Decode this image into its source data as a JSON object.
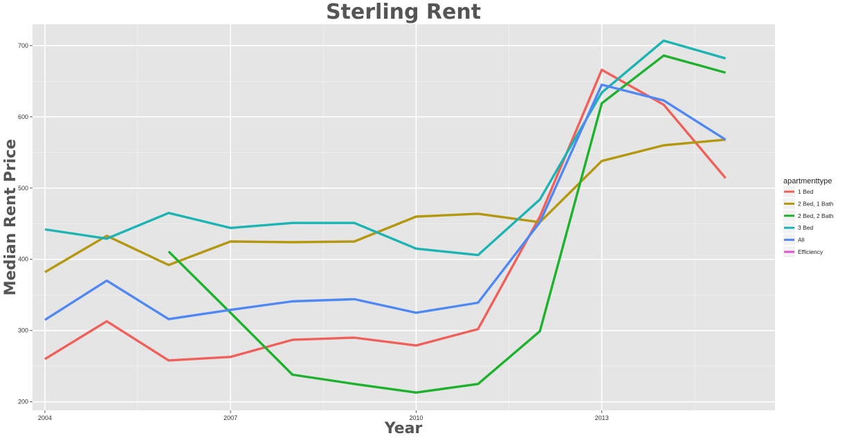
{
  "chart_data": {
    "type": "line",
    "title": "Sterling Rent",
    "xlabel": "Year",
    "ylabel": "Median Rent Price",
    "xlim": [
      2003.8,
      2015.8
    ],
    "ylim": [
      188,
      730
    ],
    "x_ticks": [
      2004,
      2007,
      2010,
      2013
    ],
    "x_tick_labels": [
      "2004",
      "2007",
      "2010",
      "2013"
    ],
    "y_ticks": [
      200,
      300,
      400,
      500,
      600,
      700
    ],
    "y_tick_labels": [
      "200",
      "300",
      "400",
      "500",
      "600",
      "700"
    ],
    "grid": true,
    "legend": {
      "title": "apartmenttype",
      "placement": "right",
      "entries": [
        "1 Bed",
        "2 Bed, 1 Bath",
        "2 Bed, 2 Bath",
        "3 Bed",
        "All",
        "Efficiency"
      ]
    },
    "colors": {
      "1 Bed": "#F0605A",
      "2 Bed, 1 Bath": "#B3980F",
      "2 Bed, 2 Bath": "#1DB12D",
      "3 Bed": "#1CB3B3",
      "All": "#5088F3",
      "Efficiency": "#E552CF"
    },
    "series": [
      {
        "name": "1 Bed",
        "x": [
          2004,
          2005,
          2006,
          2007,
          2008,
          2009,
          2010,
          2011,
          2012,
          2013,
          2014,
          2015
        ],
        "y": [
          260,
          313,
          258,
          263,
          287,
          290,
          279,
          302,
          460,
          666,
          617,
          514
        ]
      },
      {
        "name": "2 Bed, 1 Bath",
        "x": [
          2004,
          2005,
          2006,
          2007,
          2008,
          2009,
          2010,
          2011,
          2012,
          2013,
          2014,
          2015
        ],
        "y": [
          382,
          433,
          392,
          425,
          424,
          425,
          460,
          464,
          452,
          538,
          560,
          568
        ]
      },
      {
        "name": "2 Bed, 2 Bath",
        "x": [
          2006,
          2007,
          2008,
          2009,
          2010,
          2011,
          2012,
          2013,
          2014,
          2015
        ],
        "y": [
          411,
          325,
          238,
          225,
          213,
          225,
          299,
          619,
          686,
          662
        ]
      },
      {
        "name": "3 Bed",
        "x": [
          2004,
          2005,
          2006,
          2007,
          2008,
          2009,
          2010,
          2011,
          2012,
          2013,
          2014,
          2015
        ],
        "y": [
          442,
          429,
          465,
          444,
          451,
          451,
          415,
          406,
          484,
          634,
          707,
          682
        ]
      },
      {
        "name": "All",
        "x": [
          2004,
          2005,
          2006,
          2007,
          2008,
          2009,
          2010,
          2011,
          2012,
          2013,
          2014,
          2015
        ],
        "y": [
          315,
          370,
          316,
          329,
          341,
          344,
          325,
          339,
          452,
          645,
          623,
          568
        ]
      },
      {
        "name": "Efficiency",
        "x": [],
        "y": []
      }
    ]
  }
}
